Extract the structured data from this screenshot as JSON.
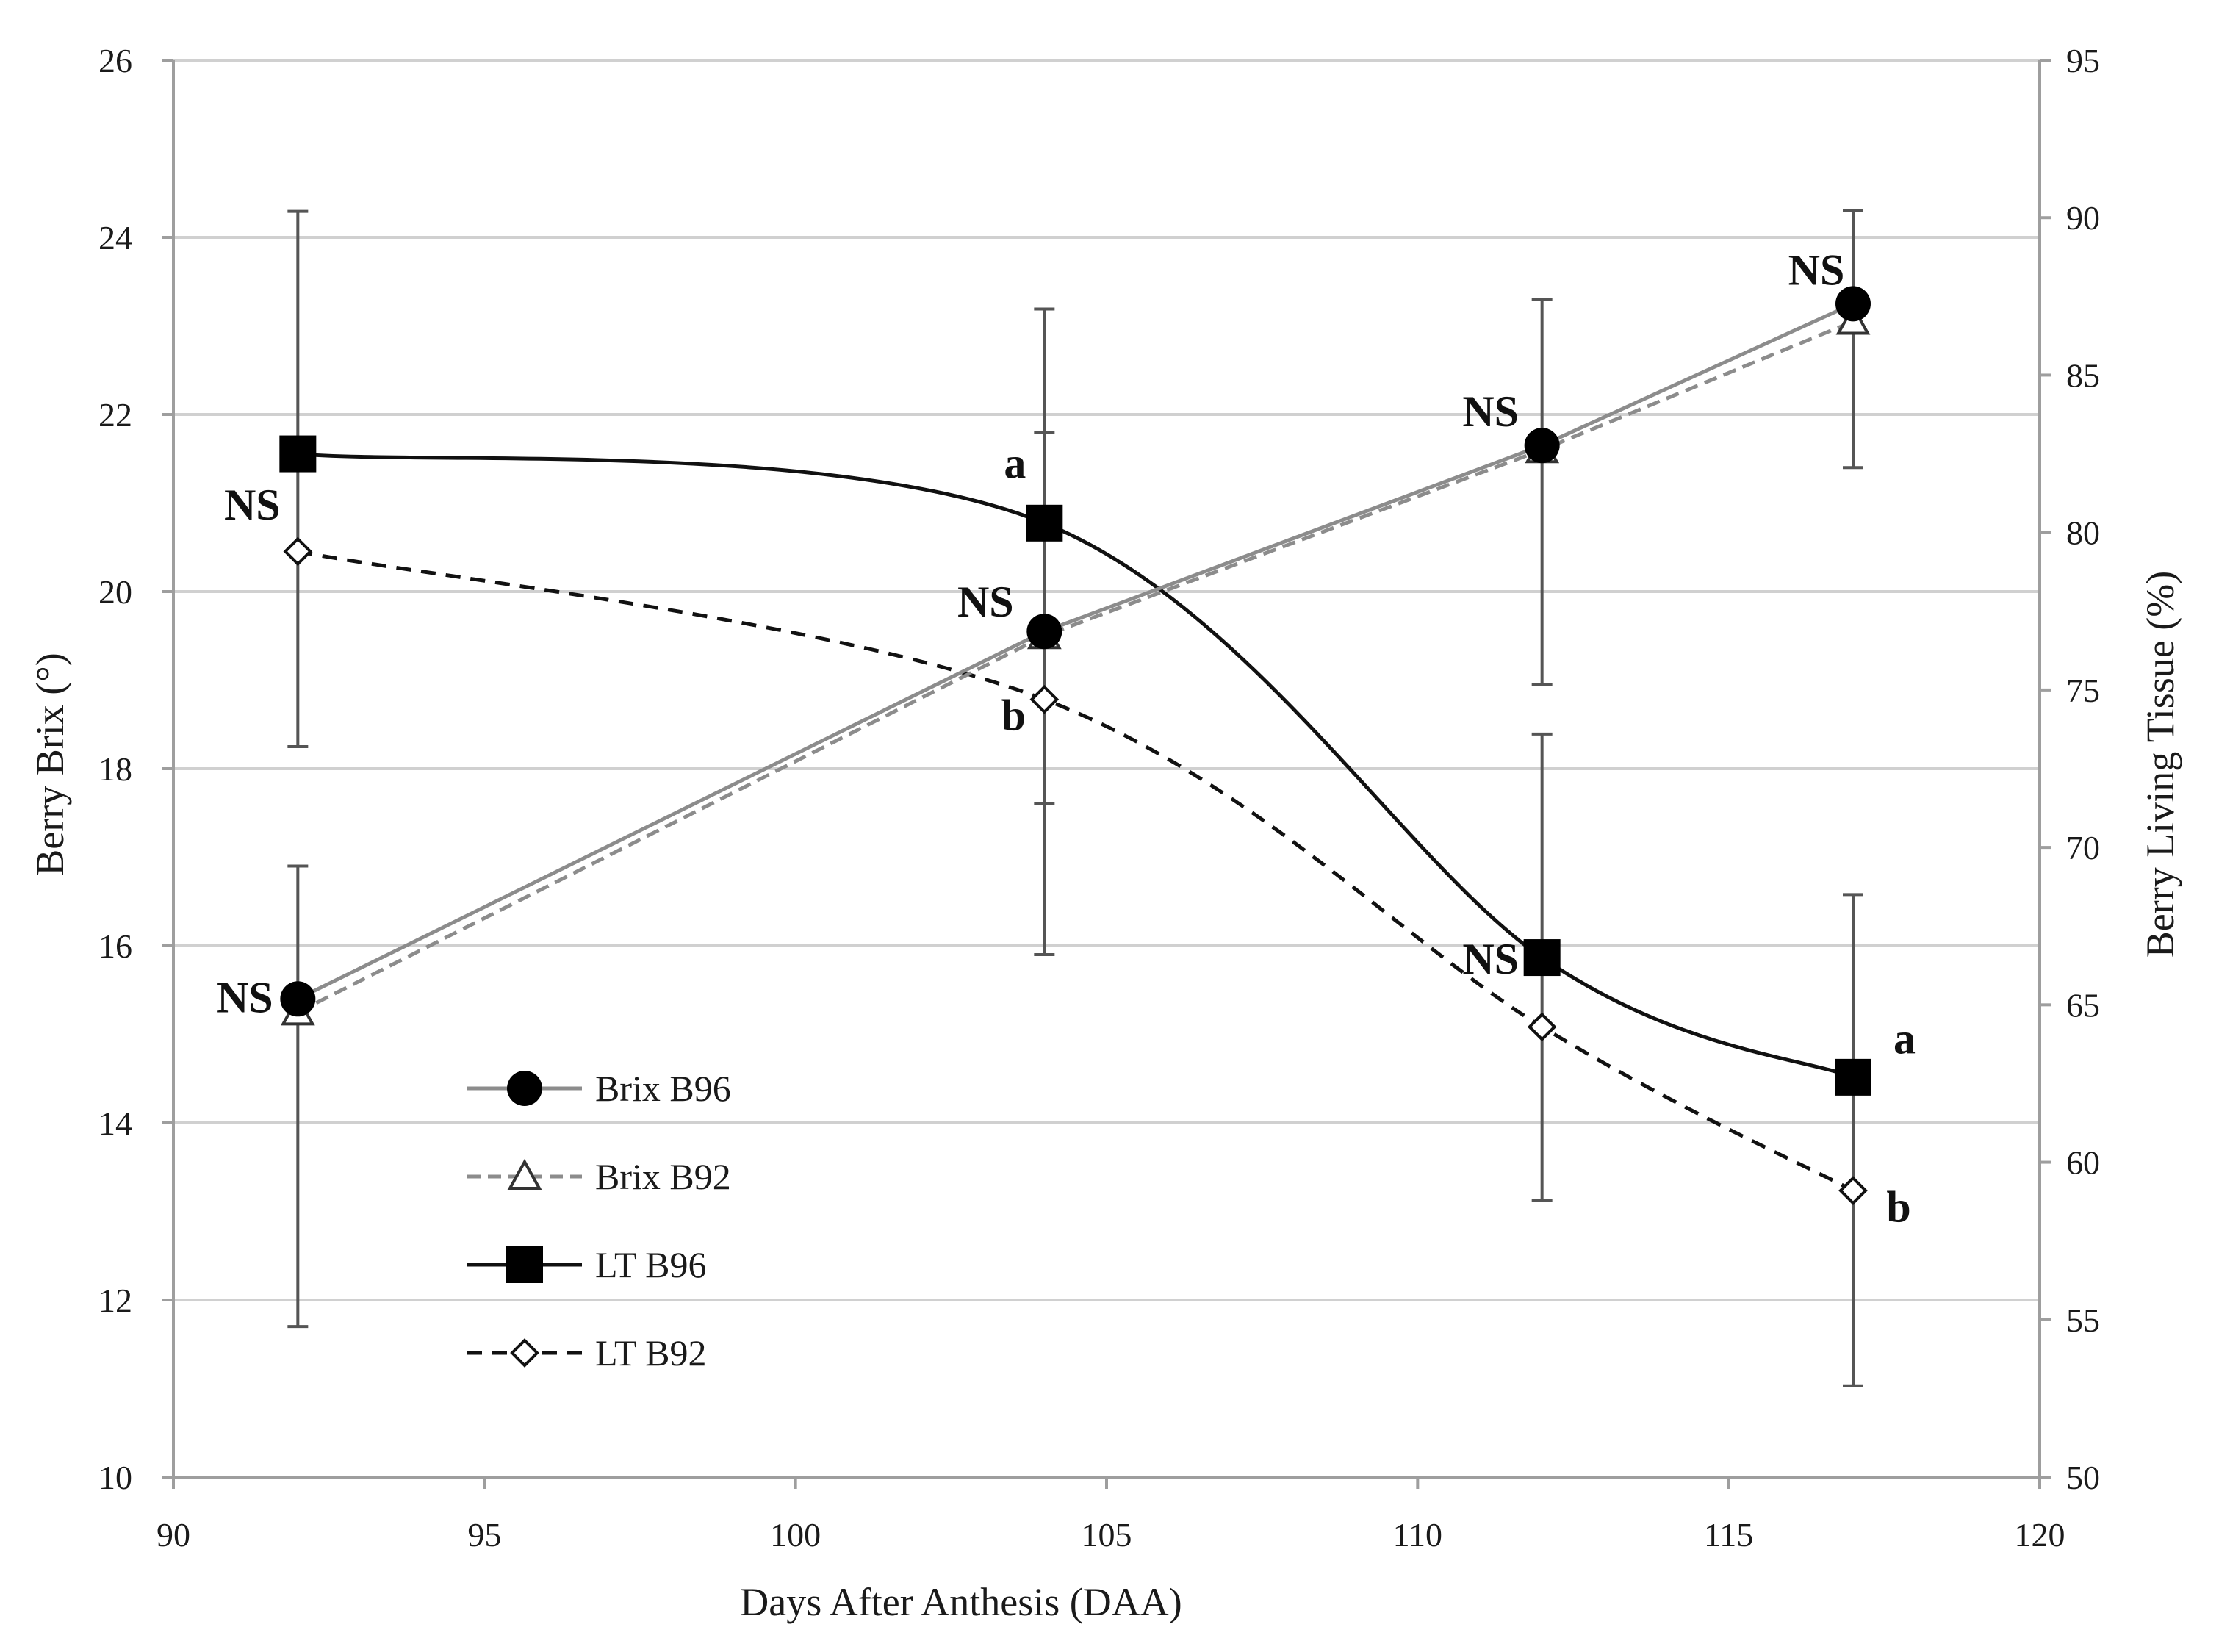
{
  "chart_data": {
    "type": "line",
    "xlabel": "Days After Anthesis (DAA)",
    "ylabel": "Berry Brix (°)",
    "y2label": "Berry Living Tissue (%)",
    "xlim": [
      90,
      120
    ],
    "ylim": [
      10,
      26
    ],
    "y2lim": [
      50,
      95
    ],
    "xticks": [
      "90",
      "95",
      "100",
      "105",
      "110",
      "115",
      "120"
    ],
    "yticks": [
      "10",
      "12",
      "14",
      "16",
      "18",
      "20",
      "22",
      "24",
      "26"
    ],
    "y2ticks": [
      "50",
      "55",
      "60",
      "65",
      "70",
      "75",
      "80",
      "85",
      "90",
      "95"
    ],
    "grid": true,
    "legend_position": "lower-left",
    "x": [
      92,
      104,
      112,
      117
    ],
    "series": [
      {
        "name": "Brix B96",
        "axis": "left",
        "values": [
          15.4,
          19.55,
          21.65,
          23.25
        ],
        "err_low": [
          11.7,
          15.9,
          18.95,
          21.4
        ],
        "err_high": [
          16.9,
          21.8,
          23.3,
          24.3
        ],
        "color": "#8c8c8c",
        "marker": "circle",
        "line": "solid"
      },
      {
        "name": "Brix B92",
        "axis": "left",
        "values": [
          15.25,
          19.5,
          21.6,
          23.05
        ],
        "color": "#8c8c8c",
        "marker": "triangle",
        "line": "dashed"
      },
      {
        "name": "LT B96",
        "axis": "right",
        "values": [
          82.5,
          80.3,
          66.5,
          62.7
        ],
        "err_low": [
          73.2,
          71.4,
          58.8,
          52.9
        ],
        "err_high": [
          90.2,
          87.1,
          73.6,
          68.5
        ],
        "color": "#111111",
        "marker": "square",
        "line": "solid"
      },
      {
        "name": "LT B92",
        "axis": "right",
        "values": [
          79.4,
          74.7,
          64.3,
          59.1
        ],
        "color": "#111111",
        "marker": "diamond",
        "line": "dashed"
      }
    ],
    "annotations": [
      {
        "text": "NS",
        "x": 92,
        "y": 20.5
      },
      {
        "text": "NS",
        "x": 92,
        "y": 15.4
      },
      {
        "text": "a",
        "x": 104,
        "y": 20.8
      },
      {
        "text": "NS",
        "x": 104,
        "y": 19.55
      },
      {
        "text": "b",
        "x": 104,
        "y": 18.8
      },
      {
        "text": "NS",
        "x": 112,
        "y": 21.65
      },
      {
        "text": "NS",
        "x": 112,
        "y": 15.9
      },
      {
        "text": "NS",
        "x": 117,
        "y": 23.25
      },
      {
        "text": "a",
        "x": 117,
        "y": 14.55
      },
      {
        "text": "b",
        "x": 117,
        "y": 13.25
      }
    ]
  }
}
